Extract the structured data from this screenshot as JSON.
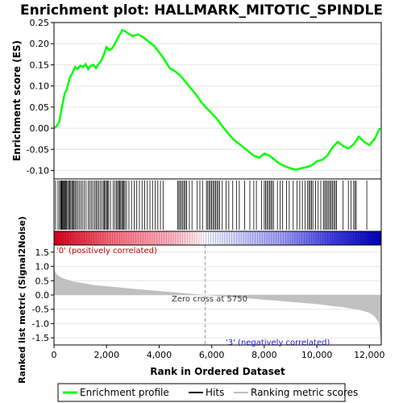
{
  "chart_data": {
    "type": "line",
    "title": "Enrichment plot: HALLMARK_MITOTIC_SPINDLE",
    "top_panel": {
      "ylabel": "Enrichment score (ES)",
      "ylim": [
        -0.12,
        0.25
      ],
      "yticks": [
        "0.25",
        "0.20",
        "0.15",
        "0.10",
        "0.05",
        "0.00",
        "-0.05",
        "-0.10"
      ],
      "ytick_values": [
        0.25,
        0.2,
        0.15,
        0.1,
        0.05,
        0.0,
        -0.05,
        -0.1
      ],
      "series": [
        {
          "name": "Enrichment profile",
          "color": "#00ff00",
          "x": [
            0,
            100,
            200,
            300,
            400,
            500,
            600,
            700,
            800,
            900,
            1000,
            1100,
            1200,
            1300,
            1400,
            1500,
            1600,
            1700,
            1800,
            1900,
            2000,
            2100,
            2200,
            2300,
            2400,
            2500,
            2600,
            2700,
            2800,
            3000,
            3200,
            3400,
            3600,
            3800,
            4000,
            4200,
            4400,
            4600,
            4800,
            5000,
            5200,
            5400,
            5600,
            5800,
            6000,
            6200,
            6400,
            6600,
            6800,
            7000,
            7200,
            7400,
            7600,
            7800,
            8000,
            8200,
            8400,
            8600,
            8800,
            9000,
            9200,
            9400,
            9600,
            9800,
            10000,
            10200,
            10400,
            10600,
            10800,
            11000,
            11200,
            11400,
            11600,
            11800,
            12000,
            12200,
            12400
          ],
          "y": [
            0.0,
            0.005,
            0.015,
            0.05,
            0.08,
            0.095,
            0.12,
            0.13,
            0.145,
            0.14,
            0.148,
            0.145,
            0.152,
            0.14,
            0.148,
            0.15,
            0.142,
            0.152,
            0.16,
            0.175,
            0.192,
            0.185,
            0.188,
            0.198,
            0.21,
            0.222,
            0.232,
            0.23,
            0.225,
            0.218,
            0.222,
            0.215,
            0.205,
            0.195,
            0.18,
            0.162,
            0.142,
            0.135,
            0.125,
            0.11,
            0.095,
            0.08,
            0.062,
            0.048,
            0.035,
            0.022,
            0.005,
            -0.01,
            -0.025,
            -0.035,
            -0.045,
            -0.055,
            -0.065,
            -0.07,
            -0.06,
            -0.065,
            -0.075,
            -0.085,
            -0.09,
            -0.095,
            -0.098,
            -0.095,
            -0.092,
            -0.088,
            -0.078,
            -0.075,
            -0.065,
            -0.045,
            -0.032,
            -0.042,
            -0.048,
            -0.038,
            -0.02,
            -0.032,
            -0.04,
            -0.025,
            0.0
          ]
        }
      ]
    },
    "hits_panel": {
      "name": "Hits",
      "positions": [
        60,
        150,
        210,
        250,
        280,
        300,
        330,
        360,
        390,
        420,
        450,
        480,
        520,
        560,
        600,
        640,
        680,
        720,
        760,
        800,
        850,
        900,
        960,
        1020,
        1080,
        1150,
        1220,
        1300,
        1360,
        1420,
        1480,
        1550,
        1600,
        1650,
        1700,
        1760,
        1820,
        1880,
        1920,
        1960,
        2000,
        2040,
        2080,
        2150,
        2250,
        2320,
        2380,
        2420,
        2460,
        2500,
        2540,
        2580,
        2620,
        2660,
        2700,
        2760,
        2850,
        2950,
        3050,
        3150,
        3250,
        3350,
        3450,
        3550,
        3650,
        3750,
        3850,
        3950,
        4050,
        4150,
        4700,
        4750,
        4800,
        4850,
        4900,
        4950,
        5000,
        5050,
        5150,
        5250,
        5450,
        5550,
        5650,
        5800,
        5850,
        5900,
        5950,
        6000,
        6050,
        6100,
        6150,
        6200,
        6250,
        6300,
        6400,
        6550,
        6650,
        6800,
        6950,
        7050,
        7250,
        7450,
        7600,
        7700,
        7900,
        8000,
        8050,
        8100,
        8150,
        8200,
        8250,
        8300,
        8350,
        8500,
        8600,
        8700,
        8850,
        8950,
        9100,
        9250,
        9350,
        9450,
        9550,
        9650,
        9700,
        9750,
        9800,
        9850,
        9950,
        10050,
        10150,
        10250,
        10300,
        10350,
        10400,
        10450,
        10500,
        10550,
        10600,
        10650,
        10700,
        10750,
        11000,
        11200,
        11300,
        11400,
        11450,
        11500,
        11900
      ]
    },
    "rank_panel": {
      "ylabel": "Ranked list metric (Signal2Noise)",
      "xlabel": "Rank in Ordered Dataset",
      "ylim": [
        -1.75,
        1.75
      ],
      "yticks": [
        "1.5",
        "1.0",
        "0.5",
        "0.0",
        "-0.5",
        "-1.0",
        "-1.5"
      ],
      "ytick_values": [
        1.5,
        1.0,
        0.5,
        0.0,
        -0.5,
        -1.0,
        -1.5
      ],
      "xlim": [
        0,
        12450
      ],
      "xticks": [
        "0",
        "2,000",
        "4,000",
        "6,000",
        "8,000",
        "10,000",
        "12,000"
      ],
      "xtick_values": [
        0,
        2000,
        4000,
        6000,
        8000,
        10000,
        12000
      ],
      "zero_cross": 5750,
      "zero_cross_label": "Zero cross at 5750",
      "pos_label": "'0' (positively correlated)",
      "neg_label": "'3' (negatively correlated)",
      "profile_x": [
        0,
        30,
        100,
        300,
        700,
        1500,
        3000,
        4500,
        5750,
        7000,
        8500,
        10000,
        11000,
        11600,
        12000,
        12200,
        12350,
        12400,
        12450
      ],
      "profile_y": [
        1.1,
        0.85,
        0.72,
        0.6,
        0.48,
        0.35,
        0.22,
        0.1,
        0.0,
        -0.09,
        -0.2,
        -0.32,
        -0.43,
        -0.52,
        -0.62,
        -0.75,
        -0.95,
        -1.25,
        -1.65
      ],
      "colors": {
        "pos": "#e0001a",
        "neg": "#0000c0",
        "fill": "#c0c0c0"
      }
    },
    "legend": {
      "placement": "bottom",
      "items": [
        {
          "label": "Enrichment profile",
          "color": "#00ff00"
        },
        {
          "label": "Hits",
          "color": "#000000"
        },
        {
          "label": "Ranking metric scores",
          "color": "#c0c0c0"
        }
      ]
    }
  }
}
